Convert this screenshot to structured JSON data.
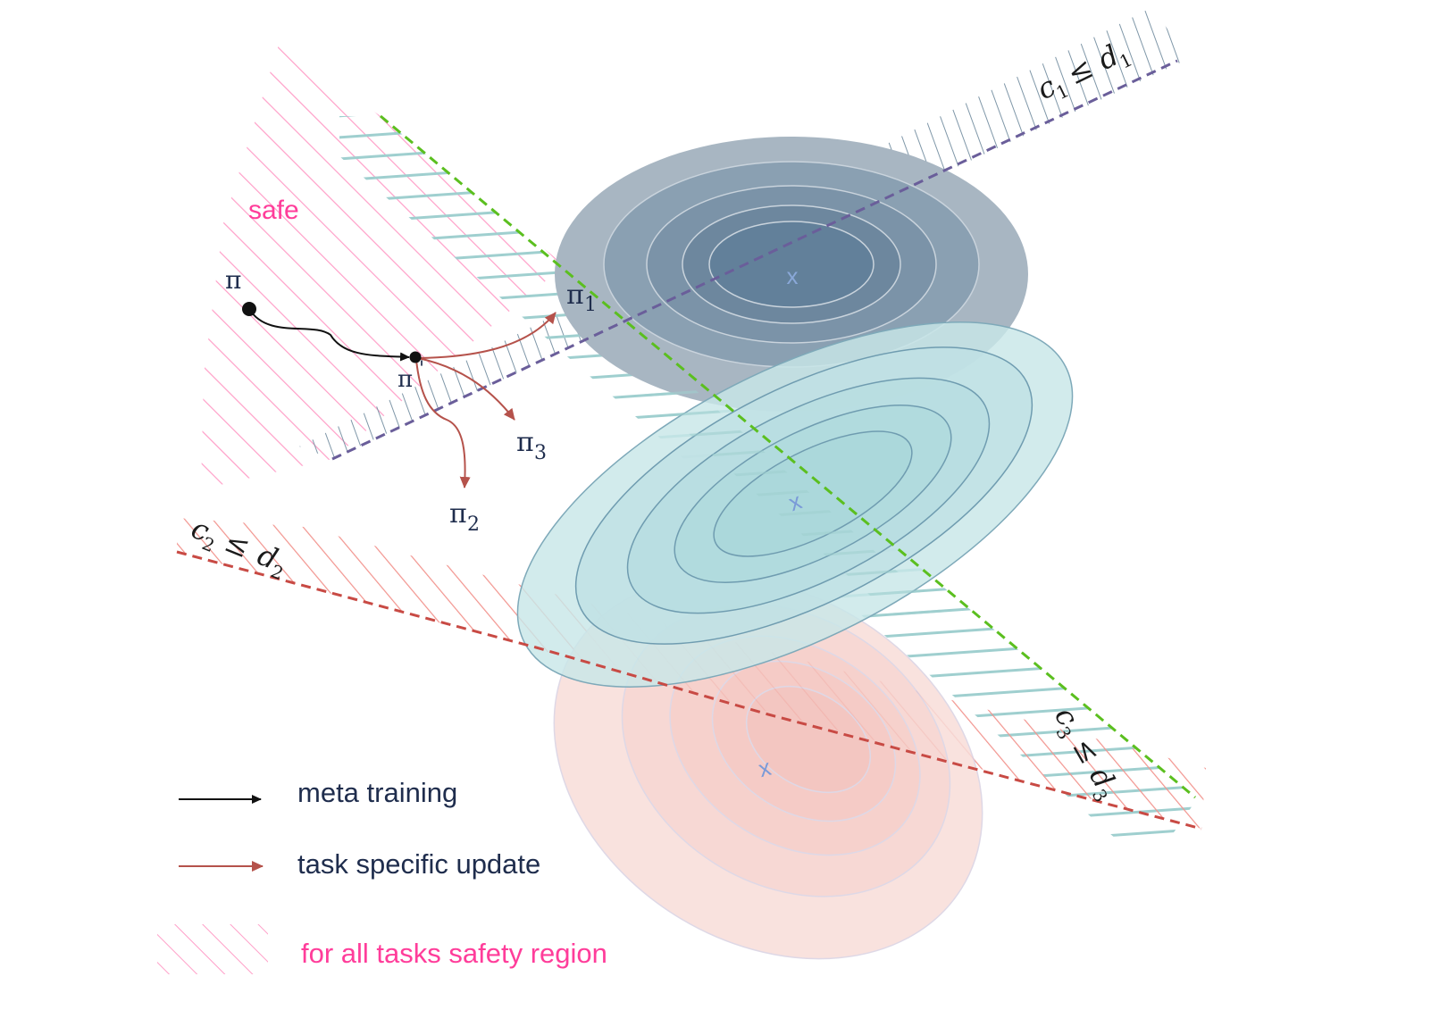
{
  "diagram": {
    "safe_label": "safe",
    "policy_labels": {
      "pi": "π",
      "pi_prime": "π",
      "pi_prime_mark": "'",
      "pi1": "π",
      "pi1_sub": "1",
      "pi2": "π",
      "pi2_sub": "2",
      "pi3": "π",
      "pi3_sub": "3"
    },
    "constraints": [
      {
        "c": "c",
        "c_sub": "1",
        "op": "≤",
        "d": "d",
        "d_sub": "1",
        "line_color": "#6a5e9a"
      },
      {
        "c": "c",
        "c_sub": "2",
        "op": "≤",
        "d": "d",
        "d_sub": "2",
        "line_color": "#c84a44"
      },
      {
        "c": "c",
        "c_sub": "3",
        "op": "≤",
        "d": "d",
        "d_sub": "3",
        "line_color": "#5bbf1f"
      }
    ],
    "task_optima": [
      {
        "marker": "x",
        "color": "#8aa8d8"
      },
      {
        "marker": "x",
        "color": "#7a9ad8"
      },
      {
        "marker": "x",
        "color": "#7a9ad8"
      }
    ],
    "colors": {
      "safe_hatch": "#ff9fc8",
      "c1_hatch": "#7f97a8",
      "c2_hatch": "#f2948e",
      "c3_hatch": "#9fcfcf",
      "meta_arrow": "#111111",
      "task_arrow": "#b5524b",
      "legend_text": "#1f2d4d",
      "safe_text": "#ff3d9a"
    }
  },
  "legend": {
    "meta_training": "meta training",
    "task_specific_update": "task specific update",
    "safety_region": "for all tasks safety region"
  }
}
